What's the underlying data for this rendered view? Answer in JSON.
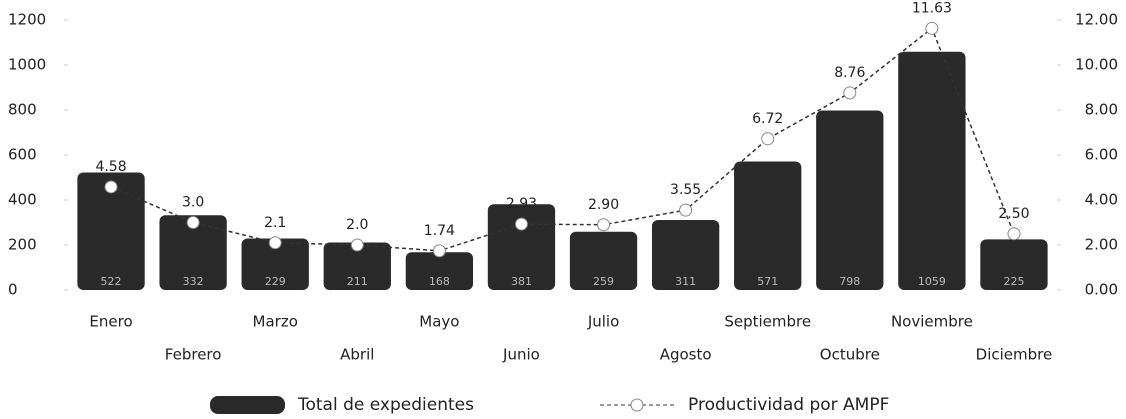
{
  "chart_data": {
    "type": "bar-line",
    "categories": [
      "Enero",
      "Febrero",
      "Marzo",
      "Abril",
      "Mayo",
      "Junio",
      "Julio",
      "Agosto",
      "Septiembre",
      "Octubre",
      "Noviembre",
      "Diciembre"
    ],
    "series": [
      {
        "name": "Total de expedientes",
        "type": "bar",
        "color": "#2a2a2a",
        "values": [
          522,
          332,
          229,
          211,
          168,
          381,
          259,
          311,
          571,
          798,
          1059,
          225
        ]
      },
      {
        "name": "Productividad por AMPF",
        "type": "line",
        "axis": "y2",
        "color": "#333333",
        "values": [
          4.58,
          3.0,
          2.1,
          2.0,
          1.74,
          2.93,
          2.9,
          3.55,
          6.72,
          8.76,
          11.63,
          2.5
        ],
        "value_labels": [
          "4.58",
          "3.0",
          "2.1",
          "2.0",
          "1.74",
          "2.93",
          "2.90",
          "3.55",
          "6.72",
          "8.76",
          "11.63",
          "2.50"
        ]
      }
    ],
    "ylim": [
      0,
      1200
    ],
    "yticks": [
      0,
      200,
      400,
      600,
      800,
      1000,
      1200
    ],
    "y2lim": [
      0,
      12
    ],
    "y2ticks": [
      {
        "value": 0,
        "label": "0.00"
      },
      {
        "value": 2,
        "label": "2.00"
      },
      {
        "value": 4,
        "label": "4.00"
      },
      {
        "value": 6,
        "label": "6.00"
      },
      {
        "value": 8,
        "label": "8.00"
      },
      {
        "value": 10,
        "label": "10.00"
      },
      {
        "value": 12,
        "label": "12.00"
      }
    ],
    "legend": "bottom"
  }
}
